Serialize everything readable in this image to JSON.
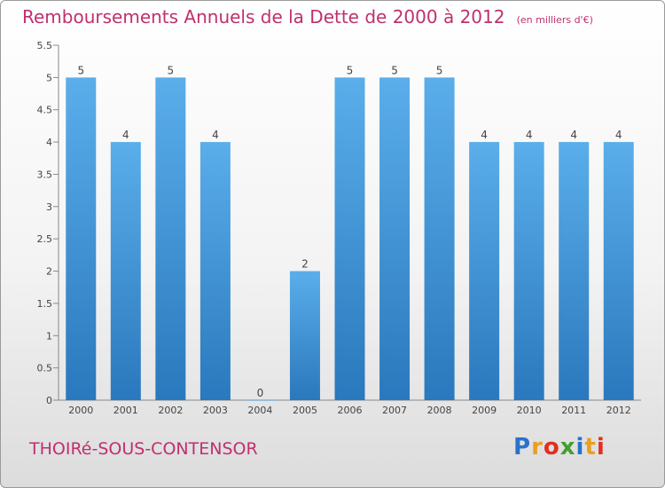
{
  "chart_data": {
    "type": "bar",
    "title": "Remboursements Annuels de la Dette de 2000 à 2012",
    "subtitle": "(en milliers d'€)",
    "categories": [
      "2000",
      "2001",
      "2002",
      "2003",
      "2004",
      "2005",
      "2006",
      "2007",
      "2008",
      "2009",
      "2010",
      "2011",
      "2012"
    ],
    "values": [
      5,
      4,
      5,
      4,
      0,
      2,
      5,
      5,
      5,
      4,
      4,
      4,
      4
    ],
    "data_labels": [
      "5",
      "4",
      "5",
      "4",
      "0",
      "2",
      "5",
      "5",
      "5",
      "4",
      "4",
      "4",
      "4"
    ],
    "yticks": [
      0,
      0.5,
      1,
      1.5,
      2,
      2.5,
      3,
      3.5,
      4,
      4.5,
      5,
      5.5
    ],
    "ytick_labels": [
      "0",
      "0.5",
      "1",
      "1.5",
      "2",
      "2.5",
      "3",
      "3.5",
      "4",
      "4.5",
      "5",
      "5.5"
    ],
    "ylim": [
      0,
      5.5
    ],
    "xlabel": "",
    "ylabel": "",
    "grid": false,
    "bar_color": "#4a9fdf"
  },
  "footer": {
    "commune": "THOIRé-SOUS-CONTENSOR",
    "brand_letters": [
      {
        "char": "P",
        "color": "#2a72c8"
      },
      {
        "char": "r",
        "color": "#e8a020"
      },
      {
        "char": "o",
        "color": "#e03020"
      },
      {
        "char": "x",
        "color": "#40a030"
      },
      {
        "char": "i",
        "color": "#2a72c8"
      },
      {
        "char": "t",
        "color": "#e8a020"
      },
      {
        "char": "i",
        "color": "#e03020"
      }
    ]
  }
}
